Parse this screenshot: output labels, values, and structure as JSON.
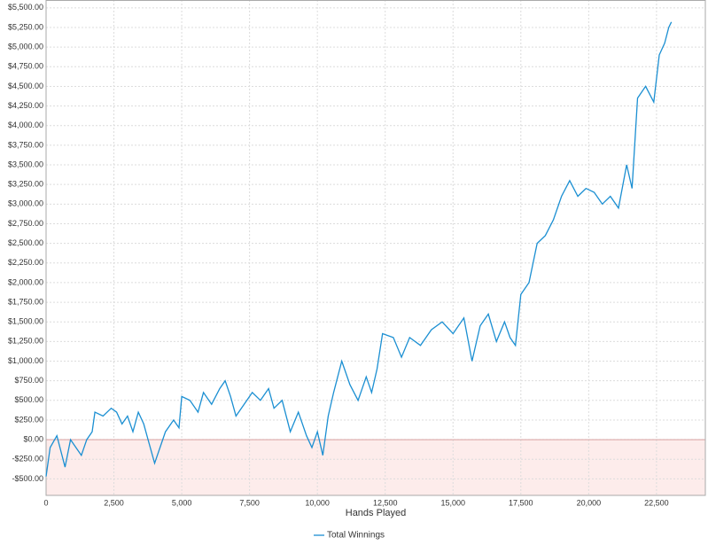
{
  "chart_data": {
    "type": "line",
    "x_label": "Hands Played",
    "series": [
      {
        "name": "Total Winnings",
        "color": "#1b8fd2",
        "x": [
          0,
          150,
          400,
          700,
          900,
          1100,
          1300,
          1500,
          1700,
          1800,
          2100,
          2400,
          2600,
          2800,
          3000,
          3200,
          3400,
          3600,
          3800,
          4000,
          4200,
          4400,
          4700,
          4900,
          5000,
          5300,
          5600,
          5800,
          6100,
          6400,
          6600,
          6800,
          7000,
          7300,
          7600,
          7900,
          8200,
          8400,
          8700,
          9000,
          9300,
          9600,
          9800,
          10000,
          10200,
          10400,
          10600,
          10900,
          11200,
          11500,
          11800,
          12000,
          12200,
          12400,
          12800,
          13100,
          13400,
          13800,
          14200,
          14600,
          15000,
          15400,
          15700,
          16000,
          16300,
          16600,
          16900,
          17100,
          17300,
          17500,
          17800,
          18100,
          18400,
          18700,
          19000,
          19300,
          19600,
          19900,
          20200,
          20500,
          20800,
          21100,
          21400,
          21600,
          21800,
          22100,
          22400,
          22600,
          22800,
          22950,
          23050
        ],
        "values": [
          -470,
          -100,
          50,
          -350,
          0,
          -100,
          -200,
          0,
          100,
          350,
          300,
          400,
          350,
          200,
          300,
          100,
          350,
          200,
          -50,
          -300,
          -100,
          100,
          250,
          150,
          550,
          500,
          350,
          600,
          450,
          650,
          750,
          550,
          300,
          450,
          600,
          500,
          650,
          400,
          500,
          100,
          350,
          50,
          -100,
          100,
          -200,
          300,
          600,
          1000,
          700,
          500,
          800,
          600,
          900,
          1350,
          1300,
          1050,
          1300,
          1200,
          1400,
          1500,
          1350,
          1550,
          1000,
          1450,
          1600,
          1250,
          1500,
          1300,
          1200,
          1850,
          2000,
          2500,
          2600,
          2800,
          3100,
          3300,
          3100,
          3200,
          3150,
          3000,
          3100,
          2950,
          3500,
          3200,
          4350,
          4500,
          4300,
          4900,
          5050,
          5250,
          5320
        ]
      }
    ],
    "xlim": [
      0,
      24300
    ],
    "xticks": [
      0,
      {
        "value": 2500,
        "label": "2,500"
      },
      {
        "value": 5000,
        "label": "5,000"
      },
      {
        "value": 7500,
        "label": "7,500"
      },
      {
        "value": 10000,
        "label": "10,000"
      },
      {
        "value": 12500,
        "label": "12,500"
      },
      {
        "value": 15000,
        "label": "15,000"
      },
      {
        "value": 17500,
        "label": "17,500"
      },
      {
        "value": 20000,
        "label": "20,000"
      },
      {
        "value": 22500,
        "label": "22,500"
      }
    ],
    "ylim": [
      -710,
      5600
    ],
    "yticks": [
      {
        "value": -500,
        "label": "-$500.00"
      },
      {
        "value": -250,
        "label": "-$250.00"
      },
      {
        "value": 0,
        "label": "$0.00"
      },
      {
        "value": 250,
        "label": "$250.00"
      },
      {
        "value": 500,
        "label": "$500.00"
      },
      {
        "value": 750,
        "label": "$750.00"
      },
      {
        "value": 1000,
        "label": "$1,000.00"
      },
      {
        "value": 1250,
        "label": "$1,250.00"
      },
      {
        "value": 1500,
        "label": "$1,500.00"
      },
      {
        "value": 1750,
        "label": "$1,750.00"
      },
      {
        "value": 2000,
        "label": "$2,000.00"
      },
      {
        "value": 2250,
        "label": "$2,250.00"
      },
      {
        "value": 2500,
        "label": "$2,500.00"
      },
      {
        "value": 2750,
        "label": "$2,750.00"
      },
      {
        "value": 3000,
        "label": "$3,000.00"
      },
      {
        "value": 3250,
        "label": "$3,250.00"
      },
      {
        "value": 3500,
        "label": "$3,500.00"
      },
      {
        "value": 3750,
        "label": "$3,750.00"
      },
      {
        "value": 4000,
        "label": "$4,000.00"
      },
      {
        "value": 4250,
        "label": "$4,250.00"
      },
      {
        "value": 4500,
        "label": "$4,500.00"
      },
      {
        "value": 4750,
        "label": "$4,750.00"
      },
      {
        "value": 5000,
        "label": "$5,000.00"
      },
      {
        "value": 5250,
        "label": "$5,250.00"
      },
      {
        "value": 5500,
        "label": "$5,500.00"
      }
    ],
    "grid": true,
    "negative_fill": "#fdeceb",
    "legend": "bottom"
  }
}
